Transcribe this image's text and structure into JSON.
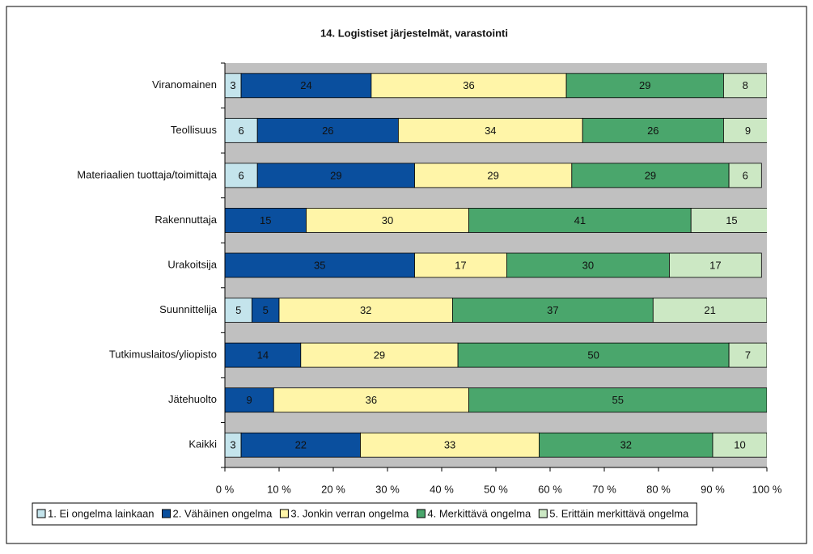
{
  "chart_data": {
    "type": "stacked-barh",
    "title": "14. Logistiset järjestelmät, varastointi",
    "categories": [
      "Viranomainen",
      "Teollisuus",
      "Materiaalien tuottaja/toimittaja",
      "Rakennuttaja",
      "Urakoitsija",
      "Suunnittelija",
      "Tutkimuslaitos/yliopisto",
      "Jätehuolto",
      "Kaikki"
    ],
    "series": [
      {
        "name": "1. Ei ongelma lainkaan",
        "color": "#c4e4ec",
        "values": [
          3,
          6,
          6,
          null,
          null,
          5,
          null,
          null,
          3
        ]
      },
      {
        "name": "2. Vähäinen ongelma",
        "color": "#0a4f9e",
        "values": [
          24,
          26,
          29,
          15,
          35,
          5,
          14,
          9,
          22
        ]
      },
      {
        "name": "3. Jonkin verran ongelma",
        "color": "#fff5a8",
        "values": [
          36,
          34,
          29,
          30,
          17,
          32,
          29,
          36,
          33
        ]
      },
      {
        "name": "4. Merkittävä ongelma",
        "color": "#4aa66c",
        "values": [
          29,
          26,
          29,
          41,
          30,
          37,
          50,
          55,
          32
        ]
      },
      {
        "name": "5. Erittäin merkittävä ongelma",
        "color": "#cce8c4",
        "values": [
          8,
          9,
          6,
          15,
          17,
          21,
          7,
          null,
          10
        ]
      }
    ],
    "xlim": [
      0,
      100
    ],
    "xticks": [
      {
        "value": 0,
        "label": "0 %"
      },
      {
        "value": 10,
        "label": "10 %"
      },
      {
        "value": 20,
        "label": "20 %"
      },
      {
        "value": 30,
        "label": "30 %"
      },
      {
        "value": 40,
        "label": "40 %"
      },
      {
        "value": 50,
        "label": "50 %"
      },
      {
        "value": 60,
        "label": "60 %"
      },
      {
        "value": 70,
        "label": "70 %"
      },
      {
        "value": 80,
        "label": "80 %"
      },
      {
        "value": 90,
        "label": "90 %"
      },
      {
        "value": 100,
        "label": "100 %"
      }
    ],
    "legend": "bottom"
  }
}
